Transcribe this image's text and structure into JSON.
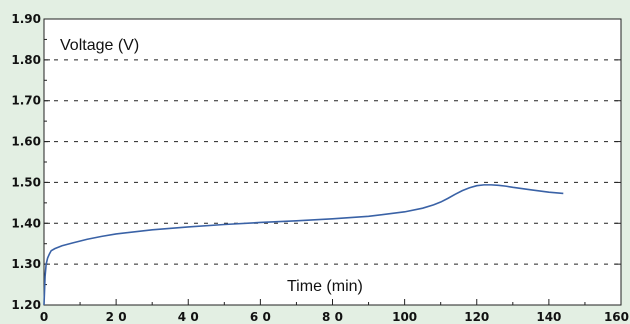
{
  "chart_data": {
    "type": "line",
    "title": "",
    "ylabel": "Voltage (V)",
    "xlabel": "Time (min)",
    "xlim": [
      0,
      160
    ],
    "ylim": [
      1.2,
      1.9
    ],
    "xticks": [
      0,
      20,
      40,
      60,
      80,
      100,
      120,
      140,
      160
    ],
    "xtick_labels": [
      "0",
      "2 0",
      "4 0",
      "6 0",
      "8 0",
      "100",
      "120",
      "140",
      "160"
    ],
    "yticks": [
      1.2,
      1.3,
      1.4,
      1.5,
      1.6,
      1.7,
      1.8,
      1.9
    ],
    "ytick_labels": [
      "1.20",
      "1.30",
      "1.40",
      "1.50",
      "1.60",
      "1.70",
      "1.80",
      "1.90"
    ],
    "grid": {
      "horizontal": "dashed",
      "vertical": false
    },
    "line_color": "#3a62a6",
    "background_color": "#e3efe3",
    "series": [
      {
        "x": [
          0,
          0.3,
          0.6,
          1,
          1.5,
          2,
          3,
          5,
          8,
          12,
          16,
          20,
          30,
          40,
          50,
          60,
          70,
          80,
          90,
          100,
          105,
          108,
          110,
          112,
          114,
          116,
          118,
          120,
          122,
          124,
          126,
          128,
          130,
          135,
          140,
          144
        ],
        "y": [
          1.2,
          1.27,
          1.3,
          1.315,
          1.325,
          1.333,
          1.338,
          1.345,
          1.352,
          1.361,
          1.368,
          1.374,
          1.384,
          1.391,
          1.397,
          1.402,
          1.406,
          1.411,
          1.417,
          1.428,
          1.437,
          1.445,
          1.452,
          1.461,
          1.471,
          1.48,
          1.487,
          1.492,
          1.494,
          1.494,
          1.493,
          1.491,
          1.488,
          1.482,
          1.476,
          1.473
        ]
      }
    ]
  }
}
